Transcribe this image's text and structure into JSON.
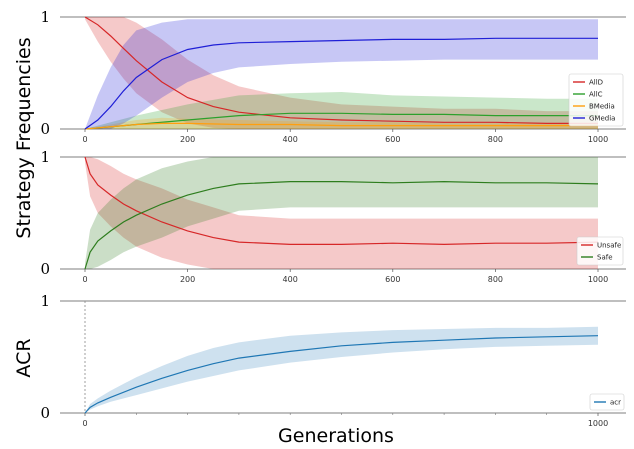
{
  "figure": {
    "ylabel_top": "Strategy Frequencies",
    "ylabel_bottom": "ACR",
    "xlabel": "Generations"
  },
  "chart_data": [
    {
      "type": "line",
      "xlim": [
        0,
        1000
      ],
      "ylim": [
        0,
        1
      ],
      "xticks": [
        0,
        200,
        400,
        600,
        800,
        1000
      ],
      "yticks": [
        0,
        1
      ],
      "legend_position": "right",
      "series": [
        {
          "name": "AllD",
          "color": "#d62728",
          "x": [
            0,
            25,
            50,
            75,
            100,
            150,
            200,
            250,
            300,
            400,
            500,
            600,
            700,
            800,
            900,
            1000
          ],
          "mean": [
            1.0,
            0.93,
            0.83,
            0.72,
            0.61,
            0.42,
            0.28,
            0.2,
            0.15,
            0.1,
            0.08,
            0.07,
            0.06,
            0.06,
            0.05,
            0.05
          ],
          "lower": [
            0.98,
            0.78,
            0.6,
            0.45,
            0.32,
            0.15,
            0.05,
            0.01,
            0.0,
            0.0,
            0.0,
            0.0,
            0.0,
            0.0,
            0.0,
            0.0
          ],
          "upper": [
            1.0,
            1.0,
            1.0,
            1.0,
            0.95,
            0.8,
            0.62,
            0.48,
            0.38,
            0.28,
            0.22,
            0.2,
            0.18,
            0.18,
            0.16,
            0.16
          ]
        },
        {
          "name": "AllC",
          "color": "#2ca02c",
          "x": [
            0,
            50,
            100,
            200,
            300,
            400,
            500,
            600,
            700,
            800,
            900,
            1000
          ],
          "mean": [
            0.0,
            0.02,
            0.04,
            0.08,
            0.12,
            0.14,
            0.14,
            0.13,
            0.13,
            0.12,
            0.12,
            0.12
          ],
          "lower": [
            0.0,
            0.0,
            0.0,
            0.0,
            0.0,
            0.0,
            0.0,
            0.0,
            0.0,
            0.0,
            0.0,
            0.0
          ],
          "upper": [
            0.0,
            0.06,
            0.12,
            0.22,
            0.3,
            0.32,
            0.33,
            0.3,
            0.29,
            0.28,
            0.27,
            0.27
          ]
        },
        {
          "name": "BMedia",
          "color": "#ff9f0e",
          "x": [
            0,
            100,
            150,
            200,
            300,
            400,
            500,
            600,
            700,
            800,
            900,
            1000
          ],
          "mean": [
            0.0,
            0.04,
            0.05,
            0.05,
            0.04,
            0.04,
            0.03,
            0.03,
            0.03,
            0.03,
            0.03,
            0.03
          ],
          "lower": [
            0.0,
            0.0,
            0.0,
            0.0,
            0.0,
            0.0,
            0.0,
            0.0,
            0.0,
            0.0,
            0.0,
            0.0
          ],
          "upper": [
            0.0,
            0.08,
            0.1,
            0.09,
            0.08,
            0.07,
            0.06,
            0.06,
            0.05,
            0.05,
            0.05,
            0.05
          ]
        },
        {
          "name": "GMedia",
          "color": "#1f1fd6",
          "x": [
            0,
            25,
            50,
            75,
            100,
            150,
            200,
            250,
            300,
            400,
            500,
            600,
            700,
            800,
            900,
            1000
          ],
          "mean": [
            0.0,
            0.08,
            0.2,
            0.34,
            0.46,
            0.62,
            0.71,
            0.75,
            0.77,
            0.78,
            0.79,
            0.8,
            0.8,
            0.81,
            0.81,
            0.81
          ],
          "lower": [
            0.0,
            0.0,
            0.0,
            0.05,
            0.12,
            0.28,
            0.42,
            0.5,
            0.55,
            0.58,
            0.6,
            0.61,
            0.62,
            0.62,
            0.62,
            0.62
          ],
          "upper": [
            0.0,
            0.3,
            0.55,
            0.75,
            0.88,
            0.95,
            0.98,
            0.98,
            0.98,
            0.98,
            0.98,
            0.98,
            0.98,
            0.98,
            0.98,
            0.98
          ]
        }
      ]
    },
    {
      "type": "line",
      "xlim": [
        0,
        1000
      ],
      "ylim": [
        0,
        1
      ],
      "xticks": [
        0,
        200,
        400,
        600,
        800,
        1000
      ],
      "yticks": [
        0,
        1
      ],
      "legend_position": "right",
      "series": [
        {
          "name": "Unsafe",
          "color": "#d62728",
          "x": [
            0,
            10,
            25,
            50,
            75,
            100,
            150,
            200,
            250,
            300,
            400,
            500,
            600,
            700,
            800,
            900,
            1000
          ],
          "mean": [
            1.0,
            0.85,
            0.75,
            0.66,
            0.58,
            0.52,
            0.42,
            0.34,
            0.28,
            0.24,
            0.22,
            0.22,
            0.23,
            0.22,
            0.23,
            0.23,
            0.24
          ],
          "lower": [
            0.95,
            0.65,
            0.5,
            0.38,
            0.28,
            0.2,
            0.1,
            0.04,
            0.0,
            0.0,
            0.0,
            0.0,
            0.0,
            0.0,
            0.0,
            0.0,
            0.0
          ],
          "upper": [
            1.0,
            1.0,
            0.98,
            0.92,
            0.85,
            0.8,
            0.72,
            0.62,
            0.55,
            0.48,
            0.45,
            0.45,
            0.45,
            0.45,
            0.45,
            0.45,
            0.45
          ]
        },
        {
          "name": "Safe",
          "color": "#2e7d1e",
          "x": [
            0,
            10,
            25,
            50,
            75,
            100,
            150,
            200,
            250,
            300,
            400,
            500,
            600,
            700,
            800,
            900,
            1000
          ],
          "mean": [
            0.0,
            0.15,
            0.25,
            0.34,
            0.42,
            0.48,
            0.58,
            0.66,
            0.72,
            0.76,
            0.78,
            0.78,
            0.77,
            0.78,
            0.77,
            0.77,
            0.76
          ],
          "lower": [
            0.0,
            0.0,
            0.02,
            0.08,
            0.15,
            0.2,
            0.28,
            0.38,
            0.45,
            0.52,
            0.55,
            0.55,
            0.55,
            0.55,
            0.55,
            0.55,
            0.55
          ],
          "upper": [
            0.05,
            0.35,
            0.5,
            0.62,
            0.72,
            0.8,
            0.9,
            0.96,
            1.0,
            1.0,
            1.0,
            1.0,
            1.0,
            1.0,
            1.0,
            1.0,
            1.0
          ]
        }
      ]
    },
    {
      "type": "line",
      "xlim": [
        0,
        1000
      ],
      "ylim": [
        0,
        1
      ],
      "xticks": [
        0,
        1000
      ],
      "yticks": [
        0,
        1
      ],
      "legend_position": "bottom-right",
      "vline_x": 0,
      "series": [
        {
          "name": "acr",
          "color": "#1f77b4",
          "x": [
            0,
            10,
            25,
            50,
            100,
            150,
            200,
            250,
            300,
            400,
            500,
            600,
            700,
            800,
            900,
            1000
          ],
          "mean": [
            0.0,
            0.05,
            0.09,
            0.14,
            0.23,
            0.31,
            0.38,
            0.44,
            0.49,
            0.55,
            0.6,
            0.63,
            0.65,
            0.67,
            0.68,
            0.69
          ],
          "lower": [
            0.0,
            0.03,
            0.06,
            0.1,
            0.16,
            0.22,
            0.28,
            0.33,
            0.38,
            0.45,
            0.5,
            0.54,
            0.57,
            0.59,
            0.6,
            0.61
          ],
          "upper": [
            0.0,
            0.08,
            0.13,
            0.2,
            0.32,
            0.42,
            0.51,
            0.58,
            0.63,
            0.69,
            0.72,
            0.74,
            0.75,
            0.76,
            0.76,
            0.77
          ]
        }
      ]
    }
  ]
}
